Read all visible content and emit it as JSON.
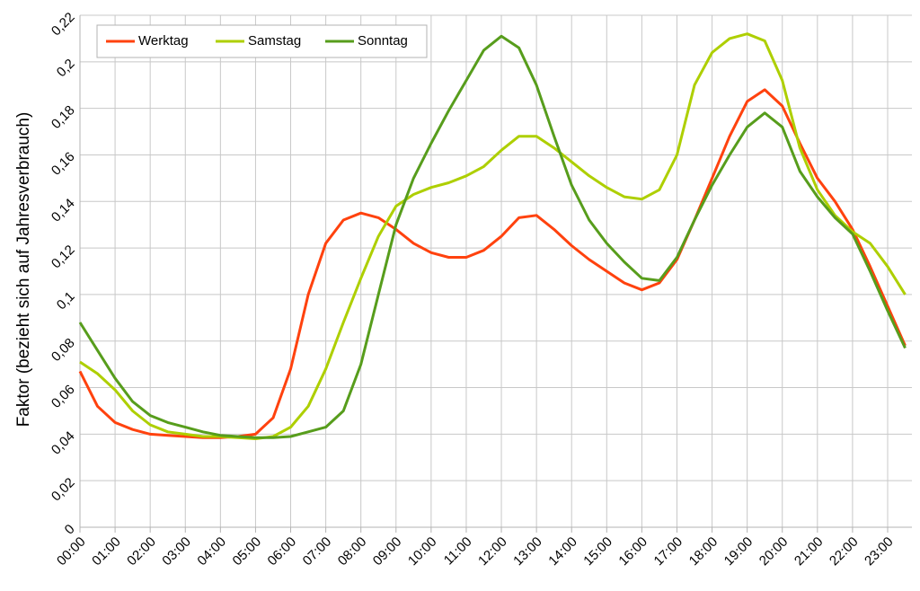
{
  "chart_data": {
    "type": "line",
    "y_label": "Faktor (bezieht sich auf Jahresverbrauch)",
    "categories": [
      "00:00",
      null,
      "01:00",
      null,
      "02:00",
      null,
      "03:00",
      null,
      "04:00",
      null,
      "05:00",
      null,
      "06:00",
      null,
      "07:00",
      null,
      "08:00",
      null,
      "09:00",
      null,
      "10:00",
      null,
      "11:00",
      null,
      "12:00",
      null,
      "13:00",
      null,
      "14:00",
      null,
      "15:00",
      null,
      "16:00",
      null,
      "17:00",
      null,
      "18:00",
      null,
      "19:00",
      null,
      "20:00",
      null,
      "21:00",
      null,
      "22:00",
      null,
      "23:00",
      null
    ],
    "series": [
      {
        "name": "Werktag",
        "color": "#ff420e",
        "values": [
          0.067,
          0.052,
          0.045,
          0.042,
          0.04,
          0.0395,
          0.039,
          0.0385,
          0.0385,
          0.039,
          0.04,
          0.047,
          0.068,
          0.1,
          0.122,
          0.132,
          0.135,
          0.133,
          0.128,
          0.122,
          0.118,
          0.116,
          0.116,
          0.119,
          0.125,
          0.133,
          0.134,
          0.128,
          0.121,
          0.115,
          0.11,
          0.105,
          0.102,
          0.105,
          0.115,
          0.132,
          0.15,
          0.168,
          0.183,
          0.188,
          0.181,
          0.165,
          0.15,
          0.14,
          0.128,
          0.112,
          0.095,
          0.078
        ]
      },
      {
        "name": "Samstag",
        "color": "#aecf00",
        "values": [
          0.071,
          0.066,
          0.059,
          0.05,
          0.044,
          0.041,
          0.04,
          0.039,
          0.039,
          0.0385,
          0.038,
          0.039,
          0.043,
          0.052,
          0.068,
          0.088,
          0.107,
          0.125,
          0.138,
          0.143,
          0.146,
          0.148,
          0.151,
          0.155,
          0.162,
          0.168,
          0.168,
          0.163,
          0.157,
          0.151,
          0.146,
          0.142,
          0.141,
          0.145,
          0.16,
          0.19,
          0.204,
          0.21,
          0.212,
          0.209,
          0.192,
          0.163,
          0.145,
          0.134,
          0.127,
          0.122,
          0.112,
          0.1
        ]
      },
      {
        "name": "Sonntag",
        "color": "#579d1c",
        "values": [
          0.088,
          0.076,
          0.064,
          0.054,
          0.048,
          0.045,
          0.043,
          0.041,
          0.0395,
          0.039,
          0.0385,
          0.0385,
          0.039,
          0.041,
          0.043,
          0.05,
          0.07,
          0.1,
          0.13,
          0.15,
          0.165,
          0.179,
          0.192,
          0.205,
          0.211,
          0.206,
          0.19,
          0.168,
          0.147,
          0.132,
          0.122,
          0.114,
          0.107,
          0.106,
          0.116,
          0.132,
          0.147,
          0.16,
          0.172,
          0.178,
          0.172,
          0.153,
          0.142,
          0.133,
          0.126,
          0.11,
          0.093,
          0.077
        ]
      }
    ],
    "ylim": [
      0,
      0.22
    ],
    "yticks": [
      0,
      {
        "value": 0.02,
        "label": "0,02"
      },
      {
        "value": 0.04,
        "label": "0,04"
      },
      {
        "value": 0.06,
        "label": "0,06"
      },
      {
        "value": 0.08,
        "label": "0,08"
      },
      {
        "value": 0.1,
        "label": "0,1"
      },
      {
        "value": 0.12,
        "label": "0,12"
      },
      {
        "value": 0.14,
        "label": "0,14"
      },
      {
        "value": 0.16,
        "label": "0,16"
      },
      {
        "value": 0.18,
        "label": "0,18"
      },
      {
        "value": 0.2,
        "label": "0,2"
      },
      {
        "value": 0.22,
        "label": "0,22"
      }
    ],
    "grid": true,
    "legend": "upper left"
  }
}
